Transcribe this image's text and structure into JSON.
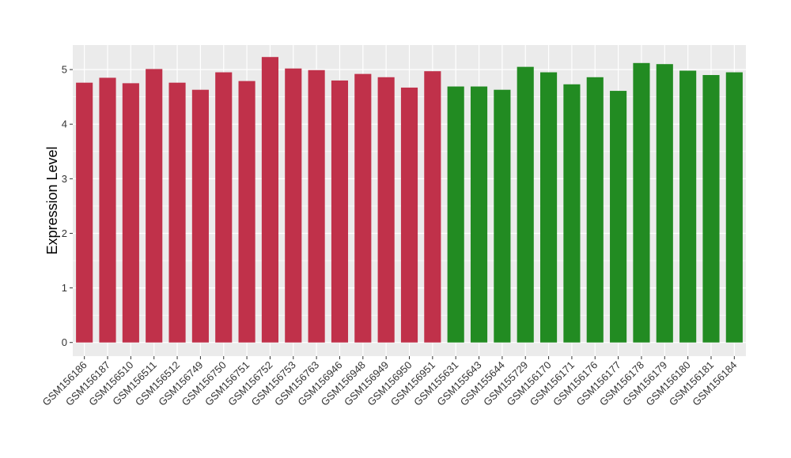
{
  "chart_data": {
    "type": "bar",
    "title": "",
    "xlabel": "",
    "ylabel": "Expression Level",
    "ylim": [
      -0.25,
      5.45
    ],
    "yticks": [
      0,
      1,
      2,
      3,
      4,
      5
    ],
    "grid": true,
    "legend": "none",
    "panel_color": "#ebebeb",
    "categories": [
      "GSM156186",
      "GSM156187",
      "GSM156510",
      "GSM156511",
      "GSM156512",
      "GSM156749",
      "GSM156750",
      "GSM156751",
      "GSM156752",
      "GSM156753",
      "GSM156763",
      "GSM156946",
      "GSM156948",
      "GSM156949",
      "GSM156950",
      "GSM156951",
      "GSM155631",
      "GSM155643",
      "GSM155644",
      "GSM155729",
      "GSM156170",
      "GSM156171",
      "GSM156176",
      "GSM156177",
      "GSM156178",
      "GSM156179",
      "GSM156180",
      "GSM156181",
      "GSM156184"
    ],
    "values": [
      4.76,
      4.85,
      4.75,
      5.01,
      4.76,
      4.63,
      4.95,
      4.79,
      5.23,
      5.02,
      4.99,
      4.8,
      4.92,
      4.86,
      4.67,
      4.97,
      4.69,
      4.69,
      4.63,
      5.05,
      4.95,
      4.73,
      4.86,
      4.61,
      5.12,
      5.1,
      4.98,
      4.9,
      4.95
    ],
    "bar_colors": [
      "#c0314a",
      "#c0314a",
      "#c0314a",
      "#c0314a",
      "#c0314a",
      "#c0314a",
      "#c0314a",
      "#c0314a",
      "#c0314a",
      "#c0314a",
      "#c0314a",
      "#c0314a",
      "#c0314a",
      "#c0314a",
      "#c0314a",
      "#c0314a",
      "#228b22",
      "#228b22",
      "#228b22",
      "#228b22",
      "#228b22",
      "#228b22",
      "#228b22",
      "#228b22",
      "#228b22",
      "#228b22",
      "#228b22",
      "#228b22",
      "#228b22"
    ]
  }
}
